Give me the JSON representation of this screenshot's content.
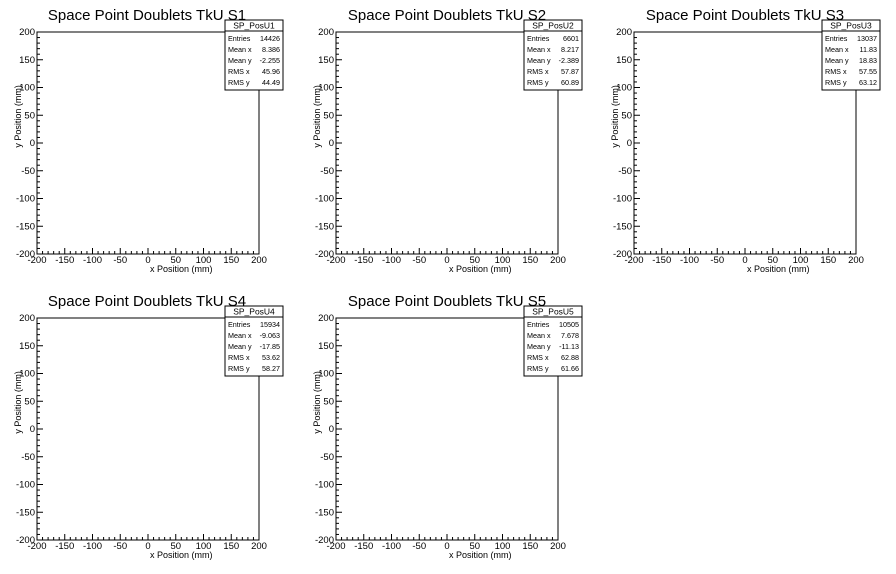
{
  "chart_data": [
    {
      "type": "heatmap",
      "title": "Space Point Doublets TkU S1",
      "xlabel": "x Position (mm)",
      "ylabel": "y Position (mm)",
      "xlim": [
        -200,
        200
      ],
      "ylim": [
        -200,
        200
      ],
      "xticks": [
        "-200",
        "-150",
        "-100",
        "-50",
        "0",
        "50",
        "100",
        "150",
        "200"
      ],
      "yticks": [
        "-200",
        "-150",
        "-100",
        "-50",
        "0",
        "50",
        "100",
        "150",
        "200"
      ],
      "stats": {
        "name": "SP_PosU1",
        "rows": [
          [
            "Entries",
            "14426"
          ],
          [
            "Mean x",
            "8.386"
          ],
          [
            "Mean y",
            "-2.255"
          ],
          [
            "RMS x",
            "45.96"
          ],
          [
            "RMS y",
            "44.49"
          ]
        ]
      },
      "pattern": {
        "kind": "line",
        "slope": 0.75,
        "intercept": 0,
        "length": 70,
        "blob": 0
      }
    },
    {
      "type": "heatmap",
      "title": "Space Point Doublets TkU S2",
      "xlabel": "x Position (mm)",
      "ylabel": "y Position (mm)",
      "xlim": [
        -200,
        200
      ],
      "ylim": [
        -200,
        200
      ],
      "xticks": [
        "-200",
        "-150",
        "-100",
        "-50",
        "0",
        "50",
        "100",
        "150",
        "200"
      ],
      "yticks": [
        "-200",
        "-150",
        "-100",
        "-50",
        "0",
        "50",
        "100",
        "150",
        "200"
      ],
      "stats": {
        "name": "SP_PosU2",
        "rows": [
          [
            "Entries",
            "6601"
          ],
          [
            "Mean x",
            "8.217"
          ],
          [
            "Mean y",
            "-2.389"
          ],
          [
            "RMS x",
            "57.87"
          ],
          [
            "RMS y",
            "60.89"
          ]
        ]
      },
      "pattern": {
        "kind": "blob",
        "cx": 10,
        "cy": 10,
        "spread": 45
      }
    },
    {
      "type": "heatmap",
      "title": "Space Point Doublets TkU S3",
      "xlabel": "x Position (mm)",
      "ylabel": "y Position (mm)",
      "xlim": [
        -200,
        200
      ],
      "ylim": [
        -200,
        200
      ],
      "xticks": [
        "-200",
        "-150",
        "-100",
        "-50",
        "0",
        "50",
        "100",
        "150",
        "200"
      ],
      "yticks": [
        "-200",
        "-150",
        "-100",
        "-50",
        "0",
        "50",
        "100",
        "150",
        "200"
      ],
      "stats": {
        "name": "SP_PosU3",
        "rows": [
          [
            "Entries",
            "13037"
          ],
          [
            "Mean x",
            "11.83"
          ],
          [
            "Mean y",
            "18.83"
          ],
          [
            "RMS x",
            "57.55"
          ],
          [
            "RMS y",
            "63.12"
          ]
        ]
      },
      "pattern": {
        "kind": "line",
        "slope": 0.55,
        "intercept": 5,
        "length": 80,
        "blob": 1
      }
    },
    {
      "type": "heatmap",
      "title": "Space Point Doublets TkU S4",
      "xlabel": "x Position (mm)",
      "ylabel": "y Position (mm)",
      "xlim": [
        -200,
        200
      ],
      "ylim": [
        -200,
        200
      ],
      "xticks": [
        "-200",
        "-150",
        "-100",
        "-50",
        "0",
        "50",
        "100",
        "150",
        "200"
      ],
      "yticks": [
        "-200",
        "-150",
        "-100",
        "-50",
        "0",
        "50",
        "100",
        "150",
        "200"
      ],
      "stats": {
        "name": "SP_PosU4",
        "rows": [
          [
            "Entries",
            "15934"
          ],
          [
            "Mean x",
            "-9.063"
          ],
          [
            "Mean y",
            "-17.85"
          ],
          [
            "RMS x",
            "53.62"
          ],
          [
            "RMS y",
            "58.27"
          ]
        ]
      },
      "pattern": {
        "kind": "line",
        "slope": -0.55,
        "intercept": -45,
        "length": 60,
        "blob": 0
      }
    },
    {
      "type": "heatmap",
      "title": "Space Point Doublets TkU S5",
      "xlabel": "x Position (mm)",
      "ylabel": "y Position (mm)",
      "xlim": [
        -200,
        200
      ],
      "ylim": [
        -200,
        200
      ],
      "xticks": [
        "-200",
        "-150",
        "-100",
        "-50",
        "0",
        "50",
        "100",
        "150",
        "200"
      ],
      "yticks": [
        "-200",
        "-150",
        "-100",
        "-50",
        "0",
        "50",
        "100",
        "150",
        "200"
      ],
      "stats": {
        "name": "SP_PosU5",
        "rows": [
          [
            "Entries",
            "10505"
          ],
          [
            "Mean x",
            "7.678"
          ],
          [
            "Mean y",
            "-11.13"
          ],
          [
            "RMS x",
            "62.88"
          ],
          [
            "RMS y",
            "61.66"
          ]
        ]
      },
      "pattern": {
        "kind": "blob2",
        "cx": -10,
        "cy": 0,
        "spread": 55
      }
    }
  ],
  "colors": {
    "background": "#ffffff",
    "palette": [
      "#5a1ee6",
      "#3a5cff",
      "#1e9bff",
      "#1fe0e0",
      "#3cf08c",
      "#b4f028",
      "#ffe600",
      "#ff8c00",
      "#e60000",
      "#7a0000"
    ]
  }
}
